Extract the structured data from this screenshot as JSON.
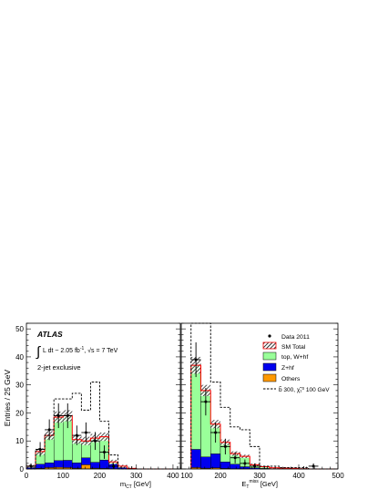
{
  "chart_data": {
    "type": "bar",
    "experiment": "ATLAS",
    "luminosity_text": "L dt ~ 2.05 fb",
    "luminosity_sup": "-1",
    "energy_text": ", √s = 7 TeV",
    "selection_text": "2-jet exclusive",
    "ylabel": "Entries / 25 GeV",
    "ylim": [
      0,
      52
    ],
    "yticks": [
      "0",
      "10",
      "20",
      "30",
      "40",
      "50"
    ],
    "legend_placement": "top-right",
    "legend": {
      "data": "Data 2011",
      "sm_total": "SM Total",
      "top_whf": "top, W+hf",
      "zhf": "Z+hf",
      "others": "Others",
      "signal": "b̃ 300, χ̃₁⁰ 100 GeV"
    },
    "colors": {
      "top_whf": "#99ff99",
      "zhf": "#0000ee",
      "others": "#ff9900",
      "sm_outline": "#ff0000",
      "data": "#000000",
      "signal": "#000000"
    },
    "panels": [
      {
        "xlabel": "m_CT [GeV]",
        "xlim": [
          0,
          420
        ],
        "xticks": [
          "0",
          "100",
          "200",
          "300",
          "400"
        ],
        "bin_edges": [
          0,
          25,
          50,
          75,
          100,
          125,
          150,
          175,
          200,
          225,
          250,
          275,
          300,
          325,
          350,
          375,
          400
        ],
        "series": [
          {
            "key": "others",
            "values": [
              0,
              0.2,
              0.5,
              0.6,
              0.5,
              0.3,
              1.5,
              0.3,
              0.2,
              0.1,
              0,
              0,
              0,
              0,
              0,
              0
            ]
          },
          {
            "key": "zhf",
            "values": [
              0.5,
              1.5,
              1.7,
              2.4,
              2.6,
              1.9,
              2.5,
              2.1,
              3.0,
              1.6,
              0.5,
              0,
              0,
              0,
              0,
              0
            ]
          },
          {
            "key": "top_whf",
            "values": [
              0.5,
              4.5,
              9.8,
              15.5,
              15.9,
              8.3,
              6.0,
              8.6,
              8.3,
              0.8,
              0.5,
              0.2,
              0,
              0,
              0,
              0
            ]
          }
        ],
        "sm_total": [
          1.0,
          6.2,
          12.0,
          18.5,
          19.0,
          10.5,
          10.0,
          11.0,
          11.5,
          2.5,
          1.0,
          0.2,
          0,
          0,
          0,
          0
        ],
        "sm_uncertainty": [
          0.5,
          1.2,
          1.5,
          2.0,
          2.0,
          1.5,
          1.5,
          1.5,
          1.5,
          0.8,
          0.5,
          0.2,
          0,
          0,
          0,
          0
        ],
        "signal": [
          0,
          7,
          12,
          25,
          25,
          27,
          21,
          31,
          17,
          5,
          0,
          0,
          0,
          0,
          0,
          0
        ],
        "data": [
          {
            "x": 12.5,
            "y": 1,
            "err": 1
          },
          {
            "x": 37.5,
            "y": 7,
            "err": 2.6
          },
          {
            "x": 62.5,
            "y": 14,
            "err": 3.7
          },
          {
            "x": 87.5,
            "y": 19,
            "err": 4.4
          },
          {
            "x": 112.5,
            "y": 19,
            "err": 4.4
          },
          {
            "x": 137.5,
            "y": 12,
            "err": 3.5
          },
          {
            "x": 162.5,
            "y": 13,
            "err": 3.6
          },
          {
            "x": 187.5,
            "y": 10,
            "err": 3.2
          },
          {
            "x": 212.5,
            "y": 6,
            "err": 2.4
          },
          {
            "x": 237.5,
            "y": 1,
            "err": 1
          },
          {
            "x": 287.5,
            "y": 0,
            "err": 1
          },
          {
            "x": 412.5,
            "y": 0,
            "err": 1
          }
        ]
      },
      {
        "xlabel": "E_T^miss [GeV]",
        "xlim": [
          100,
          500
        ],
        "xticks": [
          "100",
          "200",
          "300",
          "400",
          "500"
        ],
        "bin_edges": [
          125,
          150,
          175,
          200,
          225,
          250,
          275,
          300,
          325,
          350,
          375,
          400,
          425,
          450,
          475,
          500
        ],
        "series": [
          {
            "key": "others",
            "values": [
              0.5,
              0.3,
              0.4,
              0.2,
              0.1,
              0.1,
              0,
              0,
              0,
              0,
              0,
              0,
              0,
              0,
              0
            ]
          },
          {
            "key": "zhf",
            "values": [
              6.5,
              4.0,
              5.0,
              2.3,
              1.6,
              0.7,
              0.4,
              0.2,
              0.1,
              0,
              0,
              0,
              0,
              0,
              0
            ]
          },
          {
            "key": "top_whf",
            "values": [
              30.0,
              23.7,
              10.6,
              7.0,
              3.8,
              3.7,
              1.1,
              0.6,
              0.3,
              0.3,
              0.2,
              0.1,
              0,
              0,
              0
            ]
          }
        ],
        "sm_total": [
          37.0,
          28.0,
          16.0,
          9.5,
          5.5,
          4.5,
          1.5,
          0.8,
          0.4,
          0.3,
          0.2,
          0.1,
          0,
          0,
          0
        ],
        "sm_uncertainty": [
          3.0,
          2.0,
          1.5,
          1.0,
          0.8,
          0.6,
          0.5,
          0.3,
          0.3,
          0.2,
          0.2,
          0.1,
          0,
          0,
          0
        ],
        "signal": [
          57,
          56,
          31,
          22,
          15,
          14,
          8,
          1,
          1,
          0.5,
          0.5,
          0.5,
          0,
          0,
          0
        ],
        "data": [
          {
            "x": 137.5,
            "y": 39,
            "err": 6.2
          },
          {
            "x": 162.5,
            "y": 24,
            "err": 4.9
          },
          {
            "x": 187.5,
            "y": 13,
            "err": 3.6
          },
          {
            "x": 212.5,
            "y": 8,
            "err": 2.8
          },
          {
            "x": 237.5,
            "y": 4,
            "err": 2
          },
          {
            "x": 262.5,
            "y": 2,
            "err": 1.4
          },
          {
            "x": 287.5,
            "y": 1,
            "err": 1
          },
          {
            "x": 312.5,
            "y": 0,
            "err": 1
          },
          {
            "x": 412.5,
            "y": 0,
            "err": 1
          },
          {
            "x": 437.5,
            "y": 1,
            "err": 1
          }
        ]
      }
    ]
  }
}
